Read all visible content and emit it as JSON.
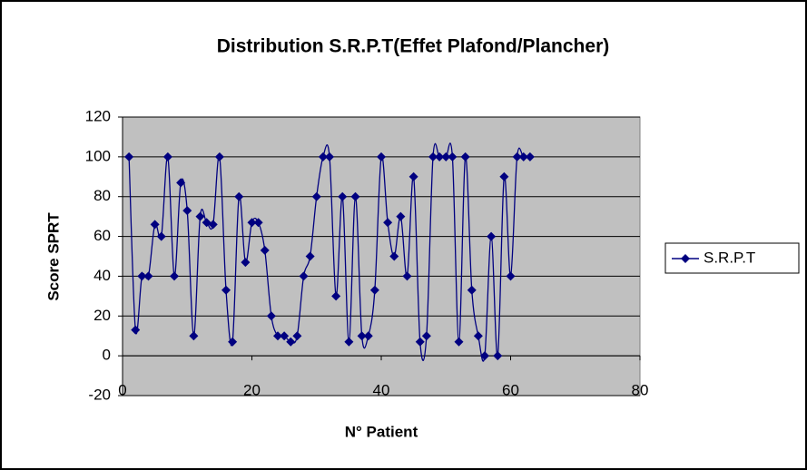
{
  "chart_data": {
    "type": "line",
    "title": "Distribution S.R.P.T(Effet Plafond/Plancher)",
    "x_label": "N° Patient",
    "y_label": "Score SPRT",
    "x": [
      1,
      2,
      3,
      4,
      5,
      6,
      7,
      8,
      9,
      10,
      11,
      12,
      13,
      14,
      15,
      16,
      17,
      18,
      19,
      20,
      21,
      22,
      23,
      24,
      25,
      26,
      27,
      28,
      29,
      30,
      31,
      32,
      33,
      34,
      35,
      36,
      37,
      38,
      39,
      40,
      41,
      42,
      43,
      44,
      45,
      46,
      47,
      48,
      49,
      50,
      51,
      52,
      53,
      54,
      55,
      56,
      57,
      58,
      59,
      60,
      61,
      62,
      63
    ],
    "series": [
      {
        "name": "S.R.P.T",
        "color": "#000080",
        "values": [
          100,
          13,
          40,
          40,
          66,
          60,
          100,
          40,
          87,
          73,
          10,
          70,
          67,
          66,
          100,
          33,
          7,
          80,
          47,
          67,
          67,
          53,
          20,
          10,
          10,
          7,
          10,
          40,
          50,
          80,
          100,
          100,
          30,
          80,
          7,
          80,
          10,
          10,
          33,
          100,
          67,
          50,
          70,
          40,
          90,
          7,
          10,
          100,
          100,
          100,
          100,
          7,
          100,
          33,
          10,
          0,
          60,
          0,
          90,
          40,
          100,
          100,
          100
        ]
      }
    ],
    "xlim": [
      0,
      80
    ],
    "xticks": [
      0,
      20,
      40,
      60,
      80
    ],
    "ylim": [
      -20,
      120
    ],
    "yticks": [
      -20,
      0,
      20,
      40,
      60,
      80,
      100,
      120
    ],
    "grid": true,
    "legend": "right",
    "plot_background": "#c0c0c0"
  }
}
